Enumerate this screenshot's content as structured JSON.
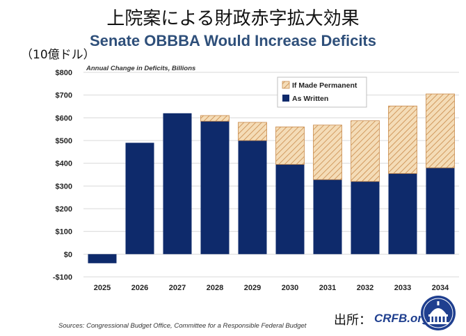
{
  "header": {
    "title_jp": "上院案による財政赤字拡大効果",
    "title_en": "Senate OBBBA Would Increase Deficits",
    "unit_jp": "（10億ドル）"
  },
  "footer": {
    "source_label": "出所：",
    "source_name": "CRFB.org",
    "sources_note": "Sources: Congressional Budget Office, Committee for a Responsible Federal Budget"
  },
  "colors": {
    "as_written": "#0e2a6b",
    "if_permanent_fill": "#f4dcb7",
    "if_permanent_hatch": "#c98a4a",
    "grid": "#d9d9d9",
    "title_en": "#2e4f7a"
  },
  "chart_data": {
    "type": "bar",
    "stacked": true,
    "subtitle": "Annual Change in Deficits, Billions",
    "categories": [
      "2025",
      "2026",
      "2027",
      "2028",
      "2029",
      "2030",
      "2031",
      "2032",
      "2033",
      "2034"
    ],
    "series": [
      {
        "name": "As Written",
        "values": [
          -40,
          490,
          620,
          585,
          500,
          395,
          328,
          320,
          355,
          380
        ]
      },
      {
        "name": "If Made Permanent",
        "values": [
          0,
          0,
          0,
          25,
          80,
          165,
          240,
          267,
          297,
          325
        ]
      }
    ],
    "ylim": [
      -100,
      800
    ],
    "yticks": [
      -100,
      0,
      100,
      200,
      300,
      400,
      500,
      600,
      700,
      800
    ],
    "ytick_labels": [
      "-$100",
      "$0",
      "$100",
      "$200",
      "$300",
      "$400",
      "$500",
      "$600",
      "$700",
      "$800"
    ],
    "legend_entries": [
      "If Made Permanent",
      "As Written"
    ],
    "legend_position": "top-right",
    "grid": true
  }
}
